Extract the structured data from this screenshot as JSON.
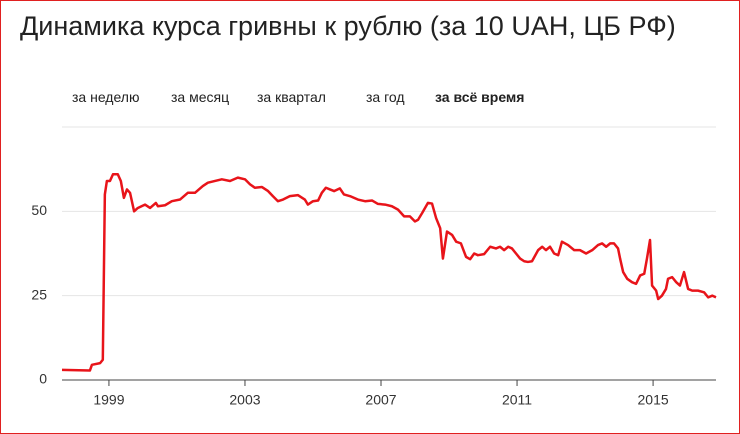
{
  "tabs": [
    "за неделю",
    "за месяц",
    "за квартал",
    "за год",
    "за всё время"
  ],
  "active_tab": 4,
  "chart_data": {
    "type": "line",
    "title": "Динамика курса гривны к рублю (за 10 UAH, ЦБ РФ)",
    "xlim": [
      1997.62,
      2016.85
    ],
    "xticks": [
      1999,
      2003,
      2007,
      2011,
      2015
    ],
    "ylim": [
      0,
      75
    ],
    "yticks": [
      0,
      25,
      50
    ],
    "grid": true,
    "x": [
      1997.62,
      1998.44,
      1998.5,
      1998.74,
      1998.82,
      1998.88,
      1998.94,
      1999.03,
      1999.12,
      1999.26,
      1999.35,
      1999.44,
      1999.53,
      1999.62,
      1999.74,
      1999.85,
      2000.06,
      2000.21,
      2000.38,
      2000.44,
      2000.65,
      2000.85,
      2001.09,
      2001.32,
      2001.53,
      2001.76,
      2001.91,
      2002.12,
      2002.32,
      2002.56,
      2002.79,
      2003.0,
      2003.15,
      2003.29,
      2003.5,
      2003.68,
      2003.82,
      2003.97,
      2004.12,
      2004.32,
      2004.56,
      2004.76,
      2004.85,
      2005.0,
      2005.15,
      2005.26,
      2005.38,
      2005.5,
      2005.62,
      2005.79,
      2005.91,
      2006.09,
      2006.32,
      2006.53,
      2006.74,
      2006.91,
      2007.12,
      2007.32,
      2007.5,
      2007.68,
      2007.85,
      2008.0,
      2008.09,
      2008.21,
      2008.38,
      2008.5,
      2008.62,
      2008.74,
      2008.82,
      2008.94,
      2009.09,
      2009.21,
      2009.35,
      2009.5,
      2009.62,
      2009.74,
      2009.85,
      2010.03,
      2010.21,
      2010.38,
      2010.5,
      2010.62,
      2010.74,
      2010.85,
      2010.97,
      2011.09,
      2011.21,
      2011.32,
      2011.44,
      2011.62,
      2011.74,
      2011.85,
      2011.97,
      2012.09,
      2012.21,
      2012.32,
      2012.5,
      2012.68,
      2012.85,
      2013.03,
      2013.21,
      2013.38,
      2013.5,
      2013.62,
      2013.74,
      2013.85,
      2013.97,
      2014.03,
      2014.12,
      2014.24,
      2014.38,
      2014.5,
      2014.62,
      2014.74,
      2014.82,
      2014.91,
      2014.97,
      2015.09,
      2015.15,
      2015.26,
      2015.38,
      2015.44,
      2015.56,
      2015.68,
      2015.79,
      2015.91,
      2016.03,
      2016.15,
      2016.32,
      2016.5,
      2016.62,
      2016.74,
      2016.85
    ],
    "series": [
      {
        "color": "#e8141a",
        "values": [
          3,
          2.8,
          4.5,
          5,
          6,
          55,
          59,
          59,
          61,
          61,
          59,
          54,
          56.5,
          55.5,
          50,
          51,
          52,
          51,
          52.5,
          51.5,
          51.8,
          53,
          53.5,
          55.5,
          55.5,
          57.5,
          58.5,
          59,
          59.5,
          59,
          60,
          59.5,
          58,
          57,
          57.2,
          56,
          54.5,
          53,
          53.5,
          54.5,
          54.8,
          53.5,
          52,
          53,
          53.2,
          55.5,
          57,
          56.5,
          56,
          56.8,
          55,
          54.5,
          53.5,
          53,
          53.2,
          52.2,
          52,
          51.5,
          50.5,
          48.5,
          48.5,
          47,
          47.5,
          49.5,
          52.5,
          52.3,
          48,
          45,
          36,
          44,
          43,
          41,
          40.5,
          36.5,
          35.8,
          37.5,
          37,
          37.3,
          39.5,
          39,
          39.5,
          38.5,
          39.5,
          39,
          37.5,
          36,
          35.2,
          35,
          35.2,
          38.5,
          39.5,
          38.5,
          39.5,
          37.5,
          37,
          41,
          40,
          38.5,
          38.5,
          37.5,
          38.5,
          40,
          40.5,
          39.5,
          40.5,
          40.5,
          39,
          36,
          32,
          30,
          29,
          28.5,
          31,
          31.5,
          36,
          41.5,
          28,
          26.5,
          24,
          25,
          27,
          30,
          30.5,
          29,
          28,
          32,
          27,
          26.5,
          26.5,
          26,
          24.5,
          25,
          24.5
        ]
      }
    ]
  }
}
